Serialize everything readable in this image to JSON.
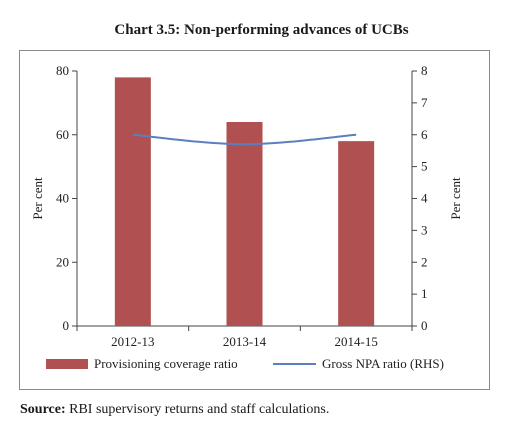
{
  "chart_data": {
    "type": "bar",
    "title": "Chart 3.5: Non-performing advances of UCBs",
    "categories": [
      "2012-13",
      "2013-14",
      "2014-15"
    ],
    "series": [
      {
        "name": "Provisioning coverage ratio",
        "kind": "bar",
        "axis": "left",
        "color": "#b05050",
        "values": [
          78,
          64,
          58
        ]
      },
      {
        "name": "Gross NPA ratio (RHS)",
        "kind": "line",
        "axis": "right",
        "color": "#5b7fbf",
        "values": [
          6.0,
          5.7,
          6.0
        ]
      }
    ],
    "ylabel": "Per cent",
    "ylim": [
      0,
      80
    ],
    "yticks": [
      0,
      20,
      40,
      60,
      80
    ],
    "y2label": "Per cent",
    "y2lim": [
      0,
      8
    ],
    "y2ticks": [
      0,
      1,
      2,
      3,
      4,
      5,
      6,
      7,
      8
    ],
    "grid": false,
    "legend": "bottom"
  },
  "source": {
    "label": "Source:",
    "text": " RBI supervisory returns and staff calculations."
  }
}
